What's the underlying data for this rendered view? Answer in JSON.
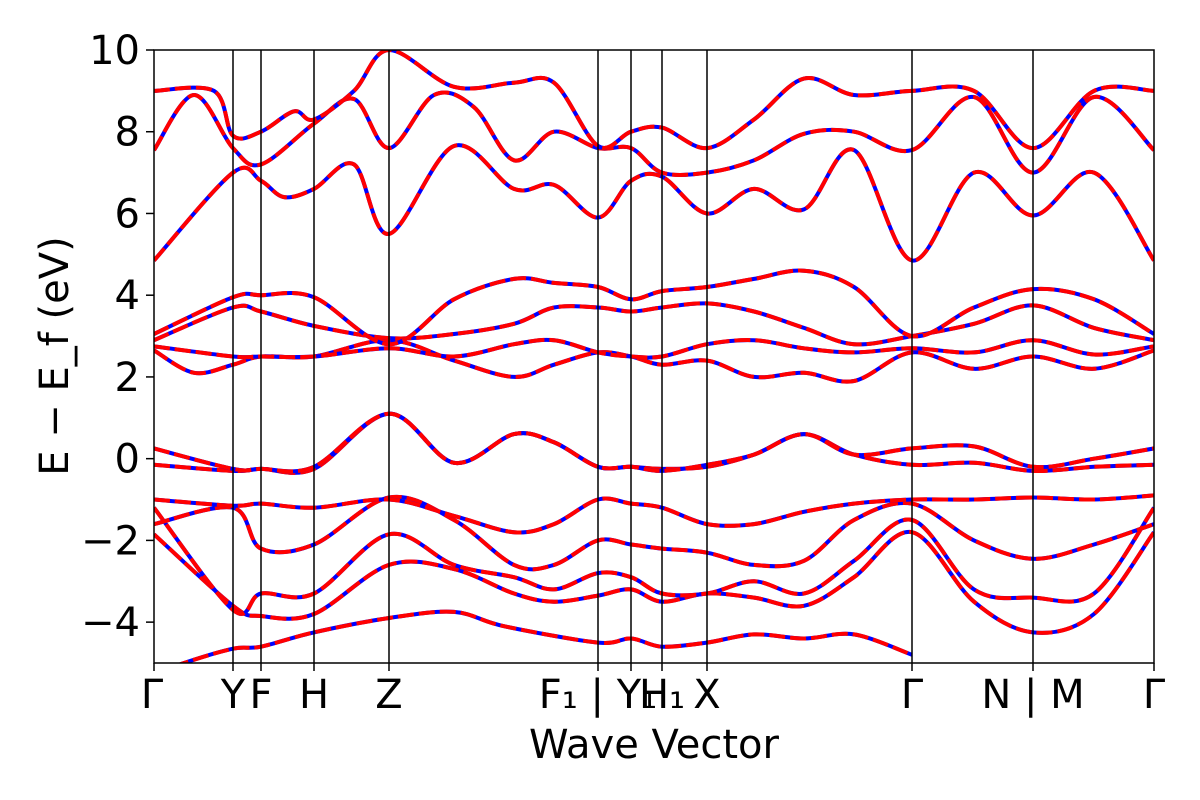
{
  "chart_data": {
    "type": "line",
    "title": "",
    "xlabel": "Wave Vector",
    "ylabel": "E − E_f (eV)",
    "ylim": [
      -5,
      10
    ],
    "yticks": [
      -4,
      -2,
      0,
      2,
      4,
      6,
      8,
      10
    ],
    "ytick_labels": [
      "−4",
      "−2",
      "0",
      "2",
      "4",
      "6",
      "8",
      "10"
    ],
    "kpoint_positions": [
      0,
      0.079,
      0.107,
      0.16,
      0.235,
      0.444,
      0.477,
      0.508,
      0.553,
      0.758,
      0.879,
      1.0
    ],
    "kpoint_labels": [
      "Γ",
      "Y",
      "F",
      "H",
      "Z",
      "F₁ | Y₁",
      "",
      "H₁",
      "X",
      "Γ",
      "N | M",
      "Γ"
    ],
    "legend": "none",
    "grid": false,
    "series": [
      {
        "color": "#0000ff",
        "style": "solid",
        "values_ref": "bands"
      },
      {
        "color": "#ff0000",
        "style": "dashed",
        "values_ref": "bands"
      }
    ],
    "bands": [
      [
        [
          0,
          -5.3
        ],
        [
          0.03,
          -5.0
        ],
        [
          0.079,
          -4.65
        ],
        [
          0.107,
          -4.6
        ],
        [
          0.16,
          -4.25
        ],
        [
          0.235,
          -3.9
        ],
        [
          0.3,
          -3.75
        ],
        [
          0.35,
          -4.1
        ],
        [
          0.444,
          -4.5
        ],
        [
          0.477,
          -4.4
        ],
        [
          0.508,
          -4.6
        ],
        [
          0.553,
          -4.5
        ],
        [
          0.6,
          -4.3
        ],
        [
          0.65,
          -4.4
        ],
        [
          0.7,
          -4.3
        ],
        [
          0.758,
          -4.8
        ]
      ],
      [
        [
          0,
          -1.85
        ],
        [
          0.079,
          -3.6
        ],
        [
          0.107,
          -3.85
        ],
        [
          0.16,
          -3.8
        ],
        [
          0.235,
          -2.6
        ],
        [
          0.3,
          -2.7
        ],
        [
          0.36,
          -3.3
        ],
        [
          0.4,
          -3.5
        ],
        [
          0.444,
          -3.35
        ],
        [
          0.477,
          -3.2
        ],
        [
          0.508,
          -3.5
        ],
        [
          0.553,
          -3.3
        ],
        [
          0.6,
          -3.4
        ],
        [
          0.65,
          -3.6
        ],
        [
          0.7,
          -2.9
        ],
        [
          0.758,
          -1.8
        ],
        [
          0.82,
          -3.5
        ],
        [
          0.879,
          -4.25
        ],
        [
          0.94,
          -3.8
        ],
        [
          1.0,
          -1.8
        ]
      ],
      [
        [
          0,
          -1.2
        ],
        [
          0.079,
          -3.7
        ],
        [
          0.107,
          -3.3
        ],
        [
          0.16,
          -3.3
        ],
        [
          0.235,
          -1.85
        ],
        [
          0.3,
          -2.6
        ],
        [
          0.36,
          -2.9
        ],
        [
          0.4,
          -3.2
        ],
        [
          0.444,
          -2.8
        ],
        [
          0.477,
          -2.9
        ],
        [
          0.508,
          -3.3
        ],
        [
          0.553,
          -3.3
        ],
        [
          0.6,
          -3.0
        ],
        [
          0.65,
          -3.3
        ],
        [
          0.7,
          -2.5
        ],
        [
          0.758,
          -1.5
        ],
        [
          0.82,
          -3.2
        ],
        [
          0.879,
          -3.4
        ],
        [
          0.94,
          -3.3
        ],
        [
          1.0,
          -1.2
        ]
      ],
      [
        [
          0,
          -1.6
        ],
        [
          0.079,
          -1.2
        ],
        [
          0.107,
          -2.2
        ],
        [
          0.16,
          -2.1
        ],
        [
          0.235,
          -0.95
        ],
        [
          0.3,
          -1.5
        ],
        [
          0.36,
          -2.6
        ],
        [
          0.4,
          -2.6
        ],
        [
          0.444,
          -2.0
        ],
        [
          0.477,
          -2.1
        ],
        [
          0.508,
          -2.2
        ],
        [
          0.553,
          -2.3
        ],
        [
          0.6,
          -2.6
        ],
        [
          0.65,
          -2.5
        ],
        [
          0.7,
          -1.5
        ],
        [
          0.758,
          -1.1
        ],
        [
          0.82,
          -2.0
        ],
        [
          0.879,
          -2.45
        ],
        [
          0.94,
          -2.1
        ],
        [
          1.0,
          -1.6
        ]
      ],
      [
        [
          0,
          -1.0
        ],
        [
          0.079,
          -1.15
        ],
        [
          0.107,
          -1.1
        ],
        [
          0.16,
          -1.2
        ],
        [
          0.235,
          -1.0
        ],
        [
          0.3,
          -1.4
        ],
        [
          0.36,
          -1.8
        ],
        [
          0.4,
          -1.6
        ],
        [
          0.444,
          -1.0
        ],
        [
          0.477,
          -1.1
        ],
        [
          0.508,
          -1.2
        ],
        [
          0.553,
          -1.6
        ],
        [
          0.6,
          -1.6
        ],
        [
          0.65,
          -1.3
        ],
        [
          0.7,
          -1.1
        ],
        [
          0.758,
          -1.0
        ],
        [
          0.82,
          -1.0
        ],
        [
          0.879,
          -0.95
        ],
        [
          0.94,
          -1.0
        ],
        [
          1.0,
          -0.9
        ]
      ],
      [
        [
          0,
          -0.15
        ],
        [
          0.079,
          -0.3
        ],
        [
          0.107,
          -0.25
        ],
        [
          0.16,
          -0.25
        ],
        [
          0.235,
          1.1
        ],
        [
          0.3,
          -0.1
        ],
        [
          0.36,
          0.6
        ],
        [
          0.4,
          0.4
        ],
        [
          0.444,
          -0.2
        ],
        [
          0.477,
          -0.2
        ],
        [
          0.508,
          -0.25
        ],
        [
          0.553,
          -0.2
        ],
        [
          0.6,
          0.1
        ],
        [
          0.65,
          0.6
        ],
        [
          0.7,
          0.1
        ],
        [
          0.758,
          -0.15
        ],
        [
          0.82,
          -0.1
        ],
        [
          0.879,
          -0.3
        ],
        [
          0.94,
          -0.2
        ],
        [
          1.0,
          -0.15
        ]
      ],
      [
        [
          0,
          0.25
        ],
        [
          0.079,
          -0.25
        ],
        [
          0.107,
          -0.25
        ],
        [
          0.16,
          -0.2
        ],
        [
          0.235,
          1.1
        ],
        [
          0.3,
          -0.1
        ],
        [
          0.36,
          0.6
        ],
        [
          0.4,
          0.4
        ],
        [
          0.444,
          -0.2
        ],
        [
          0.477,
          -0.2
        ],
        [
          0.508,
          -0.3
        ],
        [
          0.553,
          -0.15
        ],
        [
          0.6,
          0.1
        ],
        [
          0.65,
          0.6
        ],
        [
          0.7,
          0.1
        ],
        [
          0.758,
          0.25
        ],
        [
          0.82,
          0.3
        ],
        [
          0.879,
          -0.2
        ],
        [
          0.94,
          0.0
        ],
        [
          1.0,
          0.25
        ]
      ],
      [
        [
          0,
          2.65
        ],
        [
          0.04,
          2.1
        ],
        [
          0.079,
          2.3
        ],
        [
          0.107,
          2.5
        ],
        [
          0.16,
          2.5
        ],
        [
          0.235,
          2.9
        ],
        [
          0.3,
          2.4
        ],
        [
          0.36,
          2.0
        ],
        [
          0.4,
          2.3
        ],
        [
          0.444,
          2.6
        ],
        [
          0.477,
          2.5
        ],
        [
          0.508,
          2.3
        ],
        [
          0.553,
          2.4
        ],
        [
          0.6,
          2.0
        ],
        [
          0.65,
          2.1
        ],
        [
          0.7,
          1.9
        ],
        [
          0.758,
          2.6
        ],
        [
          0.82,
          2.2
        ],
        [
          0.879,
          2.5
        ],
        [
          0.94,
          2.2
        ],
        [
          1.0,
          2.65
        ]
      ],
      [
        [
          0,
          2.75
        ],
        [
          0.079,
          2.5
        ],
        [
          0.107,
          2.5
        ],
        [
          0.16,
          2.5
        ],
        [
          0.235,
          2.7
        ],
        [
          0.3,
          2.5
        ],
        [
          0.36,
          2.8
        ],
        [
          0.4,
          2.9
        ],
        [
          0.444,
          2.6
        ],
        [
          0.477,
          2.5
        ],
        [
          0.508,
          2.5
        ],
        [
          0.553,
          2.8
        ],
        [
          0.6,
          2.9
        ],
        [
          0.65,
          2.7
        ],
        [
          0.7,
          2.6
        ],
        [
          0.758,
          2.7
        ],
        [
          0.82,
          2.6
        ],
        [
          0.879,
          2.9
        ],
        [
          0.94,
          2.55
        ],
        [
          1.0,
          2.75
        ]
      ],
      [
        [
          0,
          2.9
        ],
        [
          0.079,
          3.7
        ],
        [
          0.107,
          3.6
        ],
        [
          0.16,
          3.25
        ],
        [
          0.235,
          2.95
        ],
        [
          0.3,
          3.05
        ],
        [
          0.36,
          3.3
        ],
        [
          0.4,
          3.7
        ],
        [
          0.444,
          3.7
        ],
        [
          0.477,
          3.6
        ],
        [
          0.508,
          3.7
        ],
        [
          0.553,
          3.8
        ],
        [
          0.6,
          3.6
        ],
        [
          0.65,
          3.2
        ],
        [
          0.7,
          2.8
        ],
        [
          0.758,
          3.0
        ],
        [
          0.82,
          3.3
        ],
        [
          0.879,
          3.75
        ],
        [
          0.94,
          3.2
        ],
        [
          1.0,
          2.9
        ]
      ],
      [
        [
          0,
          3.05
        ],
        [
          0.079,
          3.95
        ],
        [
          0.107,
          4.0
        ],
        [
          0.16,
          3.95
        ],
        [
          0.235,
          2.8
        ],
        [
          0.3,
          3.9
        ],
        [
          0.36,
          4.4
        ],
        [
          0.4,
          4.3
        ],
        [
          0.444,
          4.2
        ],
        [
          0.477,
          3.9
        ],
        [
          0.508,
          4.1
        ],
        [
          0.553,
          4.2
        ],
        [
          0.6,
          4.4
        ],
        [
          0.65,
          4.6
        ],
        [
          0.7,
          4.2
        ],
        [
          0.758,
          3.0
        ],
        [
          0.82,
          3.7
        ],
        [
          0.879,
          4.15
        ],
        [
          0.94,
          3.9
        ],
        [
          1.0,
          3.05
        ]
      ],
      [
        [
          0,
          4.85
        ],
        [
          0.079,
          7.0
        ],
        [
          0.107,
          6.8
        ],
        [
          0.13,
          6.4
        ],
        [
          0.16,
          6.6
        ],
        [
          0.2,
          7.2
        ],
        [
          0.235,
          5.5
        ],
        [
          0.3,
          7.65
        ],
        [
          0.36,
          6.6
        ],
        [
          0.4,
          6.7
        ],
        [
          0.444,
          5.9
        ],
        [
          0.477,
          6.8
        ],
        [
          0.508,
          6.9
        ],
        [
          0.553,
          6.0
        ],
        [
          0.6,
          6.6
        ],
        [
          0.65,
          6.1
        ],
        [
          0.7,
          7.55
        ],
        [
          0.758,
          4.85
        ],
        [
          0.82,
          7.0
        ],
        [
          0.879,
          5.95
        ],
        [
          0.94,
          7.0
        ],
        [
          1.0,
          4.85
        ]
      ],
      [
        [
          0,
          7.55
        ],
        [
          0.04,
          8.9
        ],
        [
          0.079,
          7.6
        ],
        [
          0.107,
          7.2
        ],
        [
          0.16,
          8.2
        ],
        [
          0.2,
          8.8
        ],
        [
          0.235,
          7.6
        ],
        [
          0.28,
          8.9
        ],
        [
          0.32,
          8.6
        ],
        [
          0.36,
          7.3
        ],
        [
          0.4,
          8.0
        ],
        [
          0.444,
          7.6
        ],
        [
          0.477,
          7.6
        ],
        [
          0.508,
          7.0
        ],
        [
          0.553,
          7.0
        ],
        [
          0.6,
          7.3
        ],
        [
          0.65,
          7.95
        ],
        [
          0.7,
          8.0
        ],
        [
          0.758,
          7.55
        ],
        [
          0.82,
          8.85
        ],
        [
          0.879,
          7.0
        ],
        [
          0.94,
          8.85
        ],
        [
          1.0,
          7.55
        ]
      ],
      [
        [
          0,
          9.0
        ],
        [
          0.06,
          9.0
        ],
        [
          0.079,
          7.9
        ],
        [
          0.107,
          8.0
        ],
        [
          0.14,
          8.5
        ],
        [
          0.16,
          8.3
        ],
        [
          0.2,
          9.0
        ],
        [
          0.235,
          10.0
        ],
        [
          0.3,
          9.1
        ],
        [
          0.36,
          9.2
        ],
        [
          0.4,
          9.2
        ],
        [
          0.444,
          7.65
        ],
        [
          0.477,
          8.0
        ],
        [
          0.508,
          8.1
        ],
        [
          0.553,
          7.6
        ],
        [
          0.6,
          8.3
        ],
        [
          0.65,
          9.3
        ],
        [
          0.7,
          8.9
        ],
        [
          0.758,
          9.0
        ],
        [
          0.82,
          9.0
        ],
        [
          0.879,
          7.6
        ],
        [
          0.94,
          9.0
        ],
        [
          1.0,
          9.0
        ]
      ]
    ]
  }
}
